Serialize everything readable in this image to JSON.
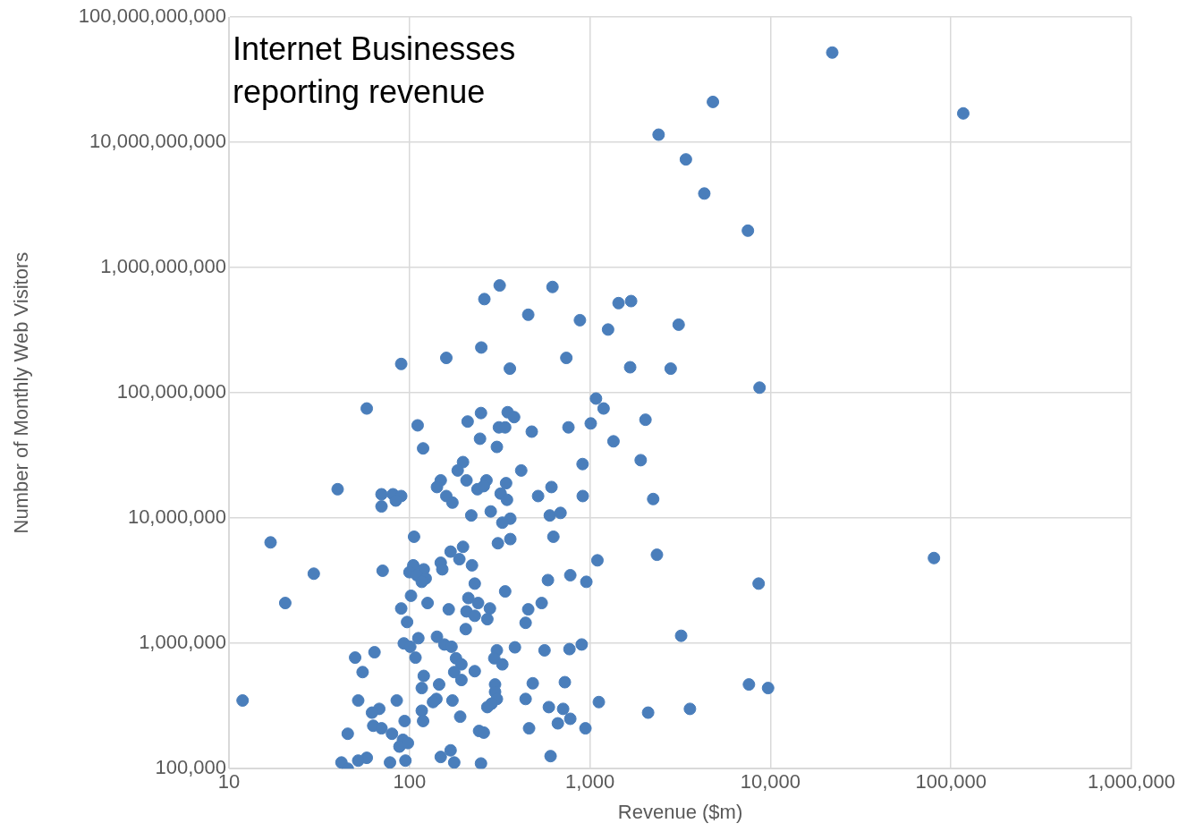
{
  "chart_data": {
    "type": "scatter",
    "title": "Internet Businesses\nreporting revenue",
    "xlabel": "Revenue ($m)",
    "ylabel": "Number of Monthly Web Visitors",
    "log": "xy",
    "grid": true,
    "legend": false,
    "marker": "circle",
    "color": "#4a7ebb",
    "xlim": [
      10,
      1000000
    ],
    "ylim": [
      100000,
      100000000000
    ],
    "xticks": [
      {
        "value": 10,
        "label": "10"
      },
      {
        "value": 100,
        "label": "100"
      },
      {
        "value": 1000,
        "label": "1,000"
      },
      {
        "value": 10000,
        "label": "10,000"
      },
      {
        "value": 100000,
        "label": "100,000"
      },
      {
        "value": 1000000,
        "label": "1,000,000"
      }
    ],
    "yticks": [
      {
        "value": 100000,
        "label": "100,000"
      },
      {
        "value": 1000000,
        "label": "1,000,000"
      },
      {
        "value": 10000000,
        "label": "10,000,000"
      },
      {
        "value": 100000000,
        "label": "100,000,000"
      },
      {
        "value": 1000000000,
        "label": "1,000,000,000"
      },
      {
        "value": 10000000000,
        "label": "10,000,000,000"
      },
      {
        "value": 100000000000,
        "label": "100,000,000,000"
      }
    ],
    "x": [
      22000,
      117000,
      4800,
      2400,
      3400,
      4300,
      7500,
      316,
      620,
      260,
      1440,
      1690,
      455,
      880,
      3100,
      1260,
      250,
      90,
      160,
      740,
      360,
      1670,
      2800,
      8700,
      58,
      1080,
      1190,
      111,
      210,
      249,
      350,
      380,
      313,
      339,
      760,
      1010,
      2030,
      476,
      246,
      1350,
      119,
      305,
      910,
      416,
      1910,
      198,
      149,
      207,
      185,
      267,
      343,
      238,
      258,
      142,
      40,
      320,
      612,
      70,
      81,
      90,
      84,
      160,
      173,
      347,
      516,
      912,
      2240,
      70,
      282,
      220,
      599,
      687,
      362,
      327,
      17,
      106,
      362,
      309,
      627,
      2350,
      80500,
      1100,
      198,
      169,
      149,
      189,
      222,
      105,
      120,
      152,
      71,
      29.5,
      100,
      110,
      123,
      117,
      778,
      585,
      955,
      230,
      8600,
      20.5,
      339,
      102,
      212,
      240,
      126,
      90,
      279,
      455,
      540,
      165,
      207,
      230,
      270,
      440,
      97,
      205,
      3200,
      142,
      112,
      156,
      171,
      93,
      101,
      900,
      384,
      305,
      560,
      770,
      64,
      50,
      108,
      181,
      295,
      194,
      327,
      55,
      177,
      230,
      120,
      194,
      146,
      298,
      482,
      726,
      7600,
      9700,
      117,
      298,
      11.9,
      52,
      85,
      173,
      141,
      135,
      305,
      440,
      285,
      1120,
      592,
      270,
      710,
      3580,
      68,
      62,
      117,
      2100,
      63,
      70,
      94,
      119,
      191,
      778,
      664,
      460,
      944,
      243,
      258,
      45.5,
      80,
      92,
      88,
      149,
      169,
      605,
      58,
      52,
      42,
      78,
      95,
      177,
      249,
      45.5,
      98
    ],
    "values": [
      52000000000,
      17000000000,
      21000000000,
      11500000000,
      7300000000,
      3900000000,
      1970000000,
      720000000,
      700000000,
      560000000,
      520000000,
      540000000,
      420000000,
      380000000,
      350000000,
      320000000,
      230000000,
      170000000,
      190000000,
      190000000,
      156000000,
      160000000,
      156000000,
      110000000,
      75000000,
      90000000,
      75000000,
      55000000,
      59000000,
      69000000,
      70000000,
      64000000,
      53000000,
      53000000,
      53000000,
      57000000,
      61000000,
      49000000,
      43000000,
      41000000,
      36000000,
      37000000,
      27000000,
      24000000,
      29000000,
      28000000,
      20000000,
      20000000,
      24000000,
      20000000,
      19000000,
      17000000,
      18000000,
      17700000,
      17000000,
      15700000,
      17700000,
      15500000,
      15500000,
      15000000,
      13800000,
      15000000,
      13300000,
      14000000,
      15000000,
      15000000,
      14200000,
      12400000,
      11300000,
      10500000,
      10500000,
      11000000,
      9900000,
      9200000,
      6400000,
      7100000,
      6800000,
      6300000,
      7100000,
      5100000,
      4800000,
      4600000,
      5900000,
      5400000,
      4400000,
      4700000,
      4200000,
      4200000,
      3900000,
      3900000,
      3800000,
      3600000,
      3700000,
      3500000,
      3300000,
      3100000,
      3500000,
      3200000,
      3100000,
      3000000,
      3000000,
      2100000,
      2600000,
      2400000,
      2300000,
      2100000,
      2100000,
      1900000,
      1900000,
      1870000,
      2100000,
      1870000,
      1800000,
      1660000,
      1560000,
      1460000,
      1480000,
      1300000,
      1150000,
      1130000,
      1100000,
      980000,
      940000,
      1000000,
      940000,
      980000,
      930000,
      880000,
      880000,
      900000,
      850000,
      770000,
      770000,
      760000,
      760000,
      680000,
      680000,
      590000,
      590000,
      600000,
      550000,
      510000,
      470000,
      470000,
      480000,
      490000,
      470000,
      440000,
      440000,
      410000,
      350000,
      350000,
      350000,
      350000,
      360000,
      340000,
      360000,
      360000,
      330000,
      340000,
      310000,
      310000,
      300000,
      300000,
      300000,
      280000,
      290000,
      280000,
      220000,
      210000,
      240000,
      240000,
      260000,
      250000,
      230000,
      210000,
      210000,
      200000,
      194000,
      190000,
      190000,
      170000,
      150000,
      124000,
      140000,
      126000,
      122000,
      116000,
      112000,
      112000,
      116000,
      112000,
      110000,
      100000,
      160000
    ]
  }
}
